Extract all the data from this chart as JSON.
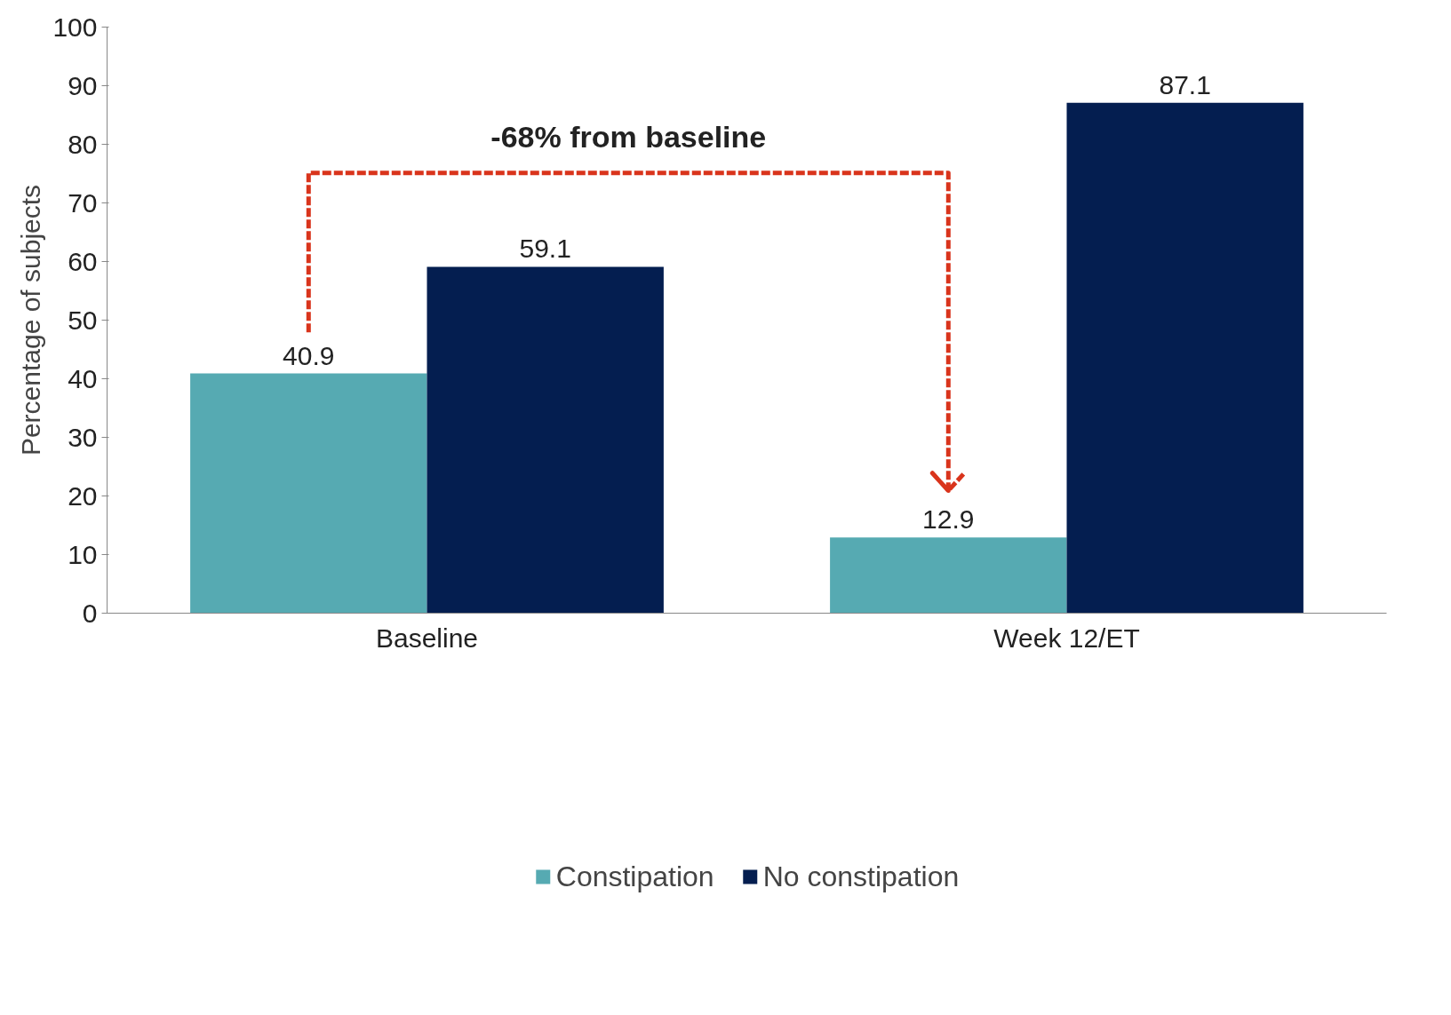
{
  "chart_data": {
    "type": "bar",
    "ylabel": "Percentage of subjects",
    "categories": [
      "Baseline",
      "Week 12/ET"
    ],
    "series": [
      {
        "name": "Constipation",
        "color": "#56aab2",
        "values": [
          40.9,
          12.9
        ]
      },
      {
        "name": "No constipation",
        "color": "#041e50",
        "values": [
          59.1,
          87.1
        ]
      }
    ],
    "ylim": [
      0,
      100
    ],
    "yticks": [
      0,
      10,
      20,
      30,
      40,
      50,
      60,
      70,
      80,
      90,
      100
    ],
    "grid": false,
    "legend": "bottom",
    "data_labels": true,
    "annotations": [
      "-68% from baseline"
    ]
  }
}
